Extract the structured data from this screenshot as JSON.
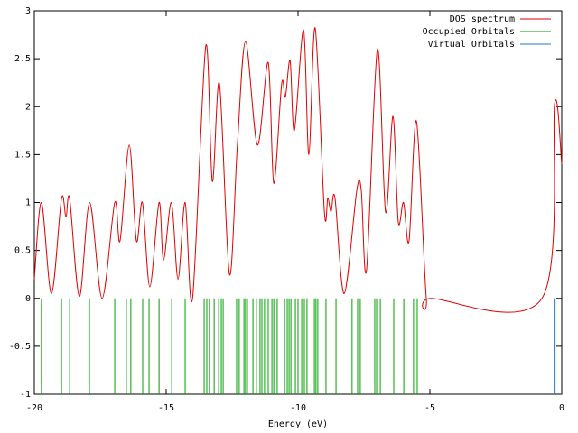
{
  "chart_data": {
    "type": "line",
    "xlabel": "Energy (eV)",
    "xlim": [
      -20,
      0
    ],
    "ylim": [
      -1,
      3
    ],
    "xticks": [
      -20,
      -15,
      -10,
      -5,
      0
    ],
    "yticks": [
      -1,
      -0.5,
      0,
      0.5,
      1,
      1.5,
      2,
      2.5,
      3
    ],
    "grid": false,
    "legend": "top-right",
    "series": [
      {
        "name": "DOS spectrum",
        "color": "#e00000",
        "style": "line",
        "x": [
          -20,
          -19.73,
          -19.35,
          -18.97,
          -18.8,
          -18.66,
          -18.29,
          -17.9,
          -17.43,
          -16.95,
          -16.75,
          -16.4,
          -16.13,
          -15.9,
          -15.62,
          -15.27,
          -15.1,
          -14.8,
          -14.55,
          -14.28,
          -14.0,
          -13.5,
          -13.25,
          -12.98,
          -12.6,
          -12.3,
          -11.99,
          -11.54,
          -11.13,
          -10.92,
          -10.62,
          -10.48,
          -10.3,
          -10.14,
          -9.79,
          -9.59,
          -9.35,
          -9.0,
          -8.87,
          -8.75,
          -8.6,
          -8.25,
          -7.77,
          -7.6,
          -7.4,
          -6.99,
          -6.68,
          -6.4,
          -6.2,
          -6.0,
          -5.79,
          -5.51,
          -5.14,
          -4.93,
          -0.75,
          -0.27,
          0
        ],
        "values": [
          0.2,
          1.0,
          0.05,
          1.04,
          0.85,
          1.04,
          0.02,
          1.0,
          0.0,
          1.0,
          0.6,
          1.6,
          0.6,
          1.0,
          0.12,
          1.0,
          0.4,
          1.0,
          0.2,
          1.0,
          0.0,
          2.63,
          1.22,
          2.24,
          0.25,
          1.6,
          2.68,
          1.6,
          2.46,
          1.2,
          2.24,
          2.1,
          2.48,
          1.75,
          2.8,
          1.5,
          2.82,
          0.9,
          1.05,
          0.9,
          1.05,
          0.05,
          1.13,
          1.12,
          0.3,
          2.6,
          0.9,
          1.9,
          0.8,
          1.0,
          0.6,
          1.85,
          0.02,
          0,
          0,
          2.03,
          1.4
        ]
      },
      {
        "name": "Occupied Orbitals",
        "color": "#00a000",
        "style": "impulse",
        "x": [
          -19.73,
          -18.97,
          -18.66,
          -17.91,
          -16.95,
          -16.51,
          -16.34,
          -15.89,
          -15.65,
          -15.27,
          -14.79,
          -14.28,
          -13.56,
          -13.46,
          -13.36,
          -13.18,
          -13.01,
          -12.91,
          -12.84,
          -12.33,
          -12.23,
          -12.05,
          -11.99,
          -11.92,
          -11.71,
          -11.58,
          -11.44,
          -11.37,
          -11.27,
          -11.13,
          -10.99,
          -10.92,
          -10.79,
          -10.51,
          -10.41,
          -10.34,
          -10.27,
          -10.1,
          -10.0,
          -9.86,
          -9.76,
          -9.66,
          -9.38,
          -9.32,
          -9.25,
          -8.94,
          -8.56,
          -7.95,
          -7.74,
          -7.64,
          -7.09,
          -7.02,
          -6.88,
          -6.37,
          -5.99,
          -5.62,
          -5.48
        ],
        "values": [
          -1,
          -1,
          -1,
          -1,
          -1,
          -1,
          -1,
          -1,
          -1,
          -1,
          -1,
          -1,
          -1,
          -1,
          -1,
          -1,
          -1,
          -1,
          -1,
          -1,
          -1,
          -1,
          -1,
          -1,
          -1,
          -1,
          -1,
          -1,
          -1,
          -1,
          -1,
          -1,
          -1,
          -1,
          -1,
          -1,
          -1,
          -1,
          -1,
          -1,
          -1,
          -1,
          -1,
          -1,
          -1,
          -1,
          -1,
          -1,
          -1,
          -1,
          -1,
          -1,
          -1,
          -1,
          -1,
          -1,
          -1
        ]
      },
      {
        "name": "Virtual Orbitals",
        "color": "#1f78c8",
        "style": "impulse",
        "x": [
          -0.27
        ],
        "values": [
          -1
        ]
      }
    ]
  }
}
